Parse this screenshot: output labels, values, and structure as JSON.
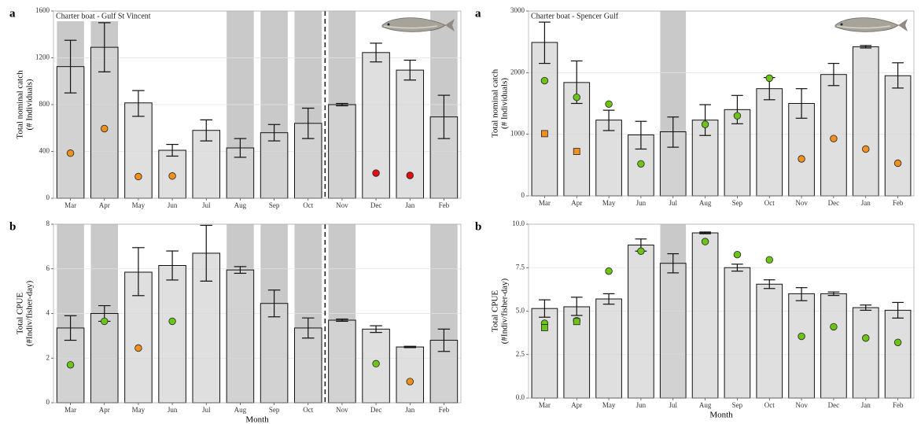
{
  "chart_data": [
    {
      "type": "bar",
      "panel_label": "a",
      "title": "Charter boat - Gulf St Vincent",
      "y_label": [
        "Total nominal catch",
        "(# Individuals)"
      ],
      "categories": [
        "Mar",
        "Apr",
        "May",
        "Jun",
        "Jul",
        "Aug",
        "Sep",
        "Oct",
        "Nov",
        "Dec",
        "Jan",
        "Feb"
      ],
      "values": [
        1125,
        1290,
        815,
        410,
        580,
        430,
        560,
        640,
        800,
        1245,
        1095,
        695
      ],
      "error_low": [
        900,
        1080,
        700,
        360,
        490,
        350,
        490,
        510,
        790,
        1165,
        1010,
        510
      ],
      "error_high": [
        1350,
        1500,
        920,
        460,
        670,
        510,
        630,
        770,
        810,
        1325,
        1180,
        880
      ],
      "shaded": [
        true,
        true,
        false,
        false,
        false,
        true,
        true,
        true,
        true,
        false,
        false,
        true
      ],
      "divider_index": 8,
      "points": [
        {
          "color": "#f0901e",
          "shape": "circle",
          "values": [
            385,
            595,
            185,
            190,
            null,
            null,
            null,
            null,
            null,
            null,
            null,
            null
          ]
        },
        {
          "color": "#e01010",
          "shape": "circle",
          "values": [
            null,
            null,
            null,
            null,
            null,
            null,
            null,
            null,
            null,
            215,
            195,
            null
          ]
        }
      ],
      "ylim": [
        0,
        1600
      ],
      "yticks": [
        0,
        400,
        800,
        1200,
        1600
      ],
      "grid": true
    },
    {
      "type": "bar",
      "panel_label": "b",
      "x_label": "Month",
      "y_label": [
        "Total CPUE",
        "(#Indiv/fisher-day)"
      ],
      "categories": [
        "Mar",
        "Apr",
        "May",
        "Jun",
        "Jul",
        "Aug",
        "Sep",
        "Oct",
        "Nov",
        "Dec",
        "Jan",
        "Feb"
      ],
      "values": [
        3.35,
        4.0,
        5.85,
        6.15,
        6.7,
        5.95,
        4.45,
        3.35,
        3.7,
        3.3,
        2.5,
        2.8
      ],
      "error_low": [
        2.8,
        3.65,
        4.8,
        5.5,
        5.45,
        5.8,
        3.85,
        2.9,
        3.65,
        3.15,
        2.47,
        2.3
      ],
      "error_high": [
        3.9,
        4.35,
        6.95,
        6.8,
        7.95,
        6.1,
        5.05,
        3.8,
        3.75,
        3.45,
        2.53,
        3.3
      ],
      "shaded": [
        true,
        true,
        false,
        false,
        false,
        true,
        true,
        true,
        true,
        false,
        false,
        true
      ],
      "divider_index": 8,
      "points": [
        {
          "color": "#6cc417",
          "shape": "circle",
          "values": [
            1.7,
            3.65,
            null,
            3.65,
            null,
            null,
            null,
            null,
            null,
            1.75,
            null,
            null
          ]
        },
        {
          "color": "#f0901e",
          "shape": "circle",
          "values": [
            null,
            null,
            2.45,
            null,
            null,
            null,
            null,
            null,
            null,
            null,
            0.95,
            null
          ]
        }
      ],
      "ylim": [
        0,
        8
      ],
      "yticks": [
        0,
        2,
        4,
        6,
        8
      ],
      "grid": true
    },
    {
      "type": "bar",
      "panel_label": "a",
      "title": "Charter boat - Spencer Gulf",
      "y_label": [
        "Total nominal catch",
        "(# Individuals)"
      ],
      "categories": [
        "Mar",
        "Apr",
        "May",
        "Jun",
        "Jul",
        "Aug",
        "Sep",
        "Oct",
        "Nov",
        "Dec",
        "Jan",
        "Feb"
      ],
      "values": [
        2490,
        1840,
        1230,
        990,
        1040,
        1230,
        1400,
        1740,
        1500,
        1970,
        2420,
        1950
      ],
      "error_low": [
        2150,
        1500,
        1060,
        760,
        790,
        980,
        1170,
        1560,
        1260,
        1790,
        2400,
        1750
      ],
      "error_high": [
        2820,
        2190,
        1390,
        1210,
        1280,
        1480,
        1630,
        1920,
        1740,
        2150,
        2440,
        2160
      ],
      "shaded": [
        false,
        false,
        false,
        false,
        true,
        false,
        false,
        false,
        false,
        false,
        false,
        false
      ],
      "points": [
        {
          "color": "#6cc417",
          "shape": "circle",
          "values": [
            1870,
            1600,
            1490,
            520,
            null,
            1160,
            1300,
            1910,
            null,
            null,
            null,
            null
          ]
        },
        {
          "color": "#f0901e",
          "shape": "square",
          "values": [
            1010,
            720,
            null,
            null,
            null,
            null,
            null,
            null,
            null,
            null,
            null,
            null
          ]
        },
        {
          "color": "#f0901e",
          "shape": "circle",
          "values": [
            null,
            null,
            null,
            null,
            null,
            null,
            null,
            null,
            600,
            930,
            760,
            530
          ]
        }
      ],
      "ylim": [
        0,
        3000
      ],
      "yticks": [
        0,
        1000,
        2000,
        3000
      ],
      "grid": true
    },
    {
      "type": "bar",
      "panel_label": "b",
      "x_label": "Month",
      "y_label": [
        "Total CPUE",
        "(#Indiv/fisher-day)"
      ],
      "categories": [
        "Mar",
        "Apr",
        "May",
        "Jun",
        "Jul",
        "Aug",
        "Sep",
        "Oct",
        "Nov",
        "Dec",
        "Jan",
        "Feb"
      ],
      "values": [
        5.15,
        5.25,
        5.7,
        8.8,
        7.75,
        9.5,
        7.5,
        6.55,
        6.0,
        6.0,
        5.2,
        5.05
      ],
      "error_low": [
        4.65,
        4.75,
        5.4,
        8.45,
        7.2,
        9.45,
        7.3,
        6.3,
        5.6,
        5.9,
        5.05,
        4.6
      ],
      "error_high": [
        5.65,
        5.8,
        6.0,
        9.15,
        8.3,
        9.55,
        7.7,
        6.8,
        6.35,
        6.1,
        5.35,
        5.5
      ],
      "shaded": [
        false,
        false,
        false,
        false,
        true,
        false,
        false,
        false,
        false,
        false,
        false,
        false
      ],
      "points": [
        {
          "color": "#6cc417",
          "shape": "circle",
          "values": [
            4.3,
            4.45,
            7.3,
            8.45,
            null,
            9.0,
            8.25,
            7.95,
            3.55,
            4.1,
            3.45,
            3.2
          ]
        },
        {
          "color": "#6cc417",
          "shape": "square",
          "values": [
            4.05,
            4.4,
            null,
            null,
            null,
            null,
            null,
            null,
            null,
            null,
            null,
            null
          ]
        }
      ],
      "ylim": [
        0,
        10
      ],
      "yticks": [
        {
          "value": 0,
          "label": "0.0"
        },
        2.5,
        {
          "value": 5,
          "label": "5.0"
        },
        7.5,
        {
          "value": 10,
          "label": "10.0"
        }
      ],
      "grid": true
    }
  ]
}
